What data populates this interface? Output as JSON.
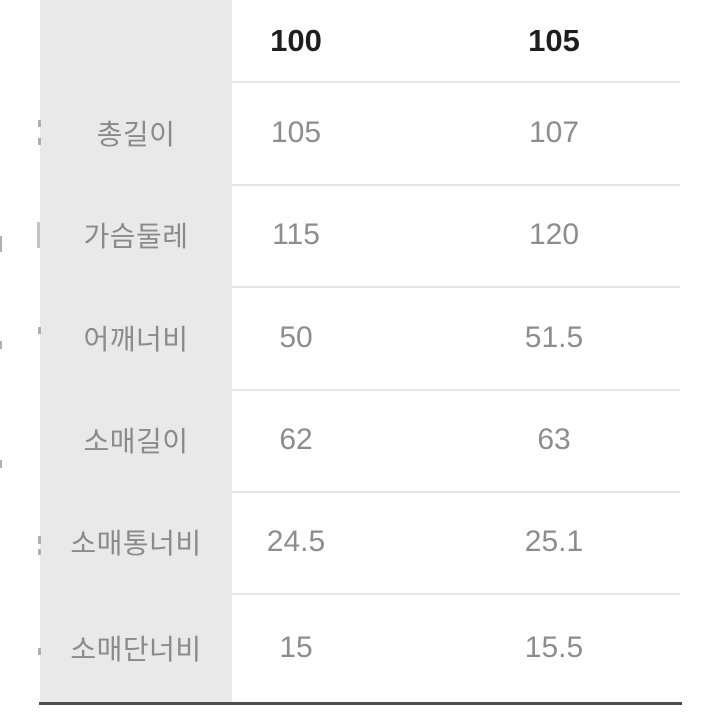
{
  "table": {
    "description": "size-spec-table",
    "size_columns": [
      "100",
      "105"
    ],
    "rows": [
      {
        "label": "총길이",
        "values": [
          "105",
          "107"
        ]
      },
      {
        "label": "가슴둘레",
        "values": [
          "115",
          "120"
        ]
      },
      {
        "label": "어깨너비",
        "values": [
          "50",
          "51.5"
        ]
      },
      {
        "label": "소매길이",
        "values": [
          "62",
          "63"
        ]
      },
      {
        "label": "소매통너비",
        "values": [
          "24.5",
          "25.1"
        ]
      },
      {
        "label": "소매단너비",
        "values": [
          "15",
          "15.5"
        ]
      }
    ]
  },
  "colors": {
    "label_column_background": "#e9e9e9",
    "header_text": "#1e1e1e",
    "body_text": "#8d8d8d",
    "row_divider": "#e5e5e5",
    "bottom_border": "#4d4d4d",
    "page_background": "#ffffff"
  }
}
